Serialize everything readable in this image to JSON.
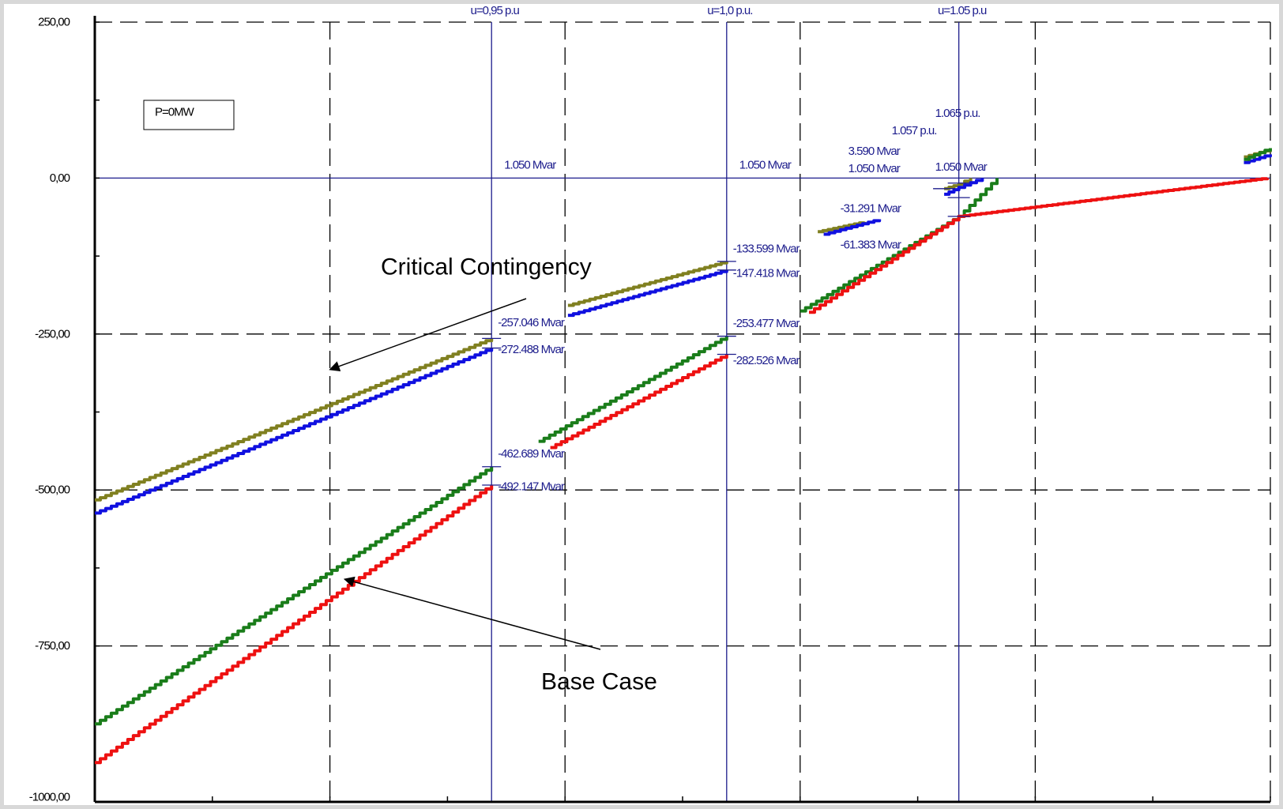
{
  "chart_data": {
    "type": "line",
    "title": "",
    "xlabel": "",
    "ylabel": "",
    "ylim": [
      -1000,
      250
    ],
    "xlim": [
      0.88,
      1.08
    ],
    "y_ticks": [
      250,
      0,
      -250,
      -500,
      -750,
      -1000
    ],
    "y_tick_labels": [
      "250,00",
      "0,00",
      "-250,00",
      "-500,00",
      "-750,00",
      "-1000,00"
    ],
    "x_grid": [
      0.92,
      0.96,
      1.0,
      1.04,
      1.08
    ],
    "grid": true,
    "info_box": "P=0MW",
    "voltage_markers": [
      {
        "x": 0.9475,
        "label": "u=0,95 p.u"
      },
      {
        "x": 0.9875,
        "label": "u=1,0 p.u."
      },
      {
        "x": 1.027,
        "label": "u=1.05 p.u"
      }
    ],
    "zero_line_labels": [
      {
        "x": 0.9475,
        "label": "1.050 Mvar"
      },
      {
        "x": 0.9875,
        "label": "1.050 Mvar"
      }
    ],
    "series": [
      {
        "color": "#808020",
        "segments": [
          [
            [
              0.88,
              -516
            ],
            [
              0.9475,
              -257
            ]
          ],
          [
            [
              0.9605,
              -204
            ],
            [
              0.9875,
              -133.6
            ]
          ],
          [
            [
              1.003,
              -86
            ],
            [
              1.011,
              -70
            ]
          ],
          [
            [
              1.0245,
              -17
            ],
            [
              1.027,
              -10
            ],
            [
              1.029,
              0
            ]
          ],
          [
            [
              1.0755,
              34
            ],
            [
              1.08,
              46
            ]
          ]
        ]
      },
      {
        "color": "#1010e0",
        "segments": [
          [
            [
              0.88,
              -537
            ],
            [
              0.9475,
              -272.5
            ]
          ],
          [
            [
              0.9605,
              -220
            ],
            [
              0.9875,
              -147.4
            ]
          ],
          [
            [
              1.004,
              -90
            ],
            [
              1.0135,
              -66
            ]
          ],
          [
            [
              1.0245,
              -26
            ],
            [
              1.027,
              -15
            ],
            [
              1.031,
              0
            ]
          ],
          [
            [
              1.0755,
              25
            ],
            [
              1.08,
              38
            ]
          ]
        ]
      },
      {
        "color": "#1a7d1a",
        "segments": [
          [
            [
              0.88,
              -875
            ],
            [
              0.9475,
              -462.7
            ]
          ],
          [
            [
              0.9555,
              -422
            ],
            [
              0.9875,
              -253.5
            ]
          ],
          [
            [
              1.0,
              -213
            ],
            [
              1.027,
              -61.4
            ],
            [
              1.0335,
              0
            ]
          ],
          [
            [
              1.0755,
              30
            ],
            [
              1.08,
              48
            ]
          ]
        ]
      },
      {
        "color": "#ee1111",
        "segments": [
          [
            [
              0.88,
              -937
            ],
            [
              0.9475,
              -492.1
            ]
          ],
          [
            [
              0.9575,
              -432
            ],
            [
              0.9875,
              -282.5
            ]
          ],
          [
            [
              1.0015,
              -215
            ],
            [
              1.027,
              -61.4
            ],
            [
              1.0795,
              0
            ]
          ]
        ]
      }
    ],
    "point_labels": [
      {
        "x": 0.9475,
        "y": -257.046,
        "label": "-257.046 Mvar"
      },
      {
        "x": 0.9475,
        "y": -272.488,
        "label": "-272.488 Mvar"
      },
      {
        "x": 0.9475,
        "y": -462.689,
        "label": "-462.689 Mvar"
      },
      {
        "x": 0.9475,
        "y": -492.147,
        "label": "-492.147 Mvar"
      },
      {
        "x": 0.9875,
        "y": -133.599,
        "label": "-133.599 Mvar"
      },
      {
        "x": 0.9875,
        "y": -147.418,
        "label": "-147.418 Mvar"
      },
      {
        "x": 0.9875,
        "y": -253.477,
        "label": "-253.477 Mvar"
      },
      {
        "x": 0.9875,
        "y": -282.526,
        "label": "-282.526 Mvar"
      },
      {
        "x": 1.027,
        "y": -31.291,
        "label": "-31.291 Mvar"
      },
      {
        "x": 1.027,
        "y": -61.383,
        "label": "-61.383 Mvar"
      },
      {
        "x": 1.027,
        "y": 0,
        "label": "1.050 Mvar"
      },
      {
        "x": 1.027,
        "y": 0,
        "label": "1.050 Mvar"
      },
      {
        "x": 1.027,
        "y": 0,
        "label": "3.590 Mvar"
      },
      {
        "x": 1.027,
        "y": 0,
        "label": "1.057 p.u."
      },
      {
        "x": 1.027,
        "y": 0,
        "label": "1.065 p.u."
      }
    ],
    "annotations": [
      {
        "label": "Critical Contingency",
        "points_to": {
          "x": 0.92,
          "y": -307
        }
      },
      {
        "label": "Base Case",
        "points_to": {
          "x": 0.9225,
          "y": -643
        }
      }
    ]
  }
}
